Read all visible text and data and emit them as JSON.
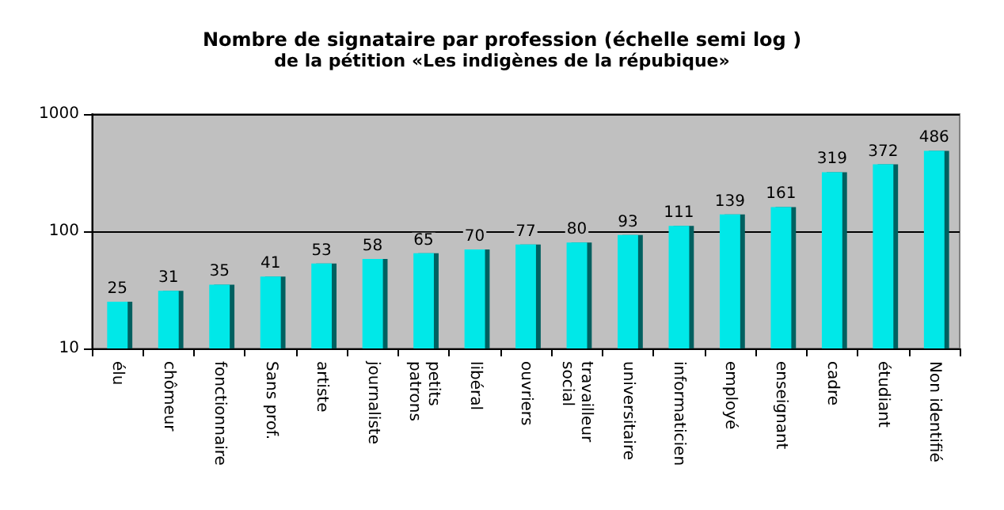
{
  "chart_data": {
    "type": "bar",
    "title": "Nombre de signataire par profession (échelle semi log )",
    "subtitle": "de la pétition «Les indigènes de la répubique»",
    "categories": [
      "élu",
      "chômeur",
      "fonctionnaire",
      "Sans prof.",
      "artiste",
      "journaliste",
      "petits\npatrons",
      "libéral",
      "ouvriers",
      "travailleur\nsocial",
      "universitaire",
      "informaticien",
      "employé",
      "enseignant",
      "cadre",
      "étudiant",
      "Non identifié"
    ],
    "values": [
      25,
      31,
      35,
      41,
      53,
      58,
      65,
      70,
      77,
      80,
      93,
      111,
      139,
      161,
      319,
      372,
      486
    ],
    "color": "#00e8e8",
    "log": true,
    "ylim": [
      10,
      1000
    ],
    "yticks": [
      10,
      100,
      1000
    ],
    "grid": "y",
    "data_labels": true
  }
}
